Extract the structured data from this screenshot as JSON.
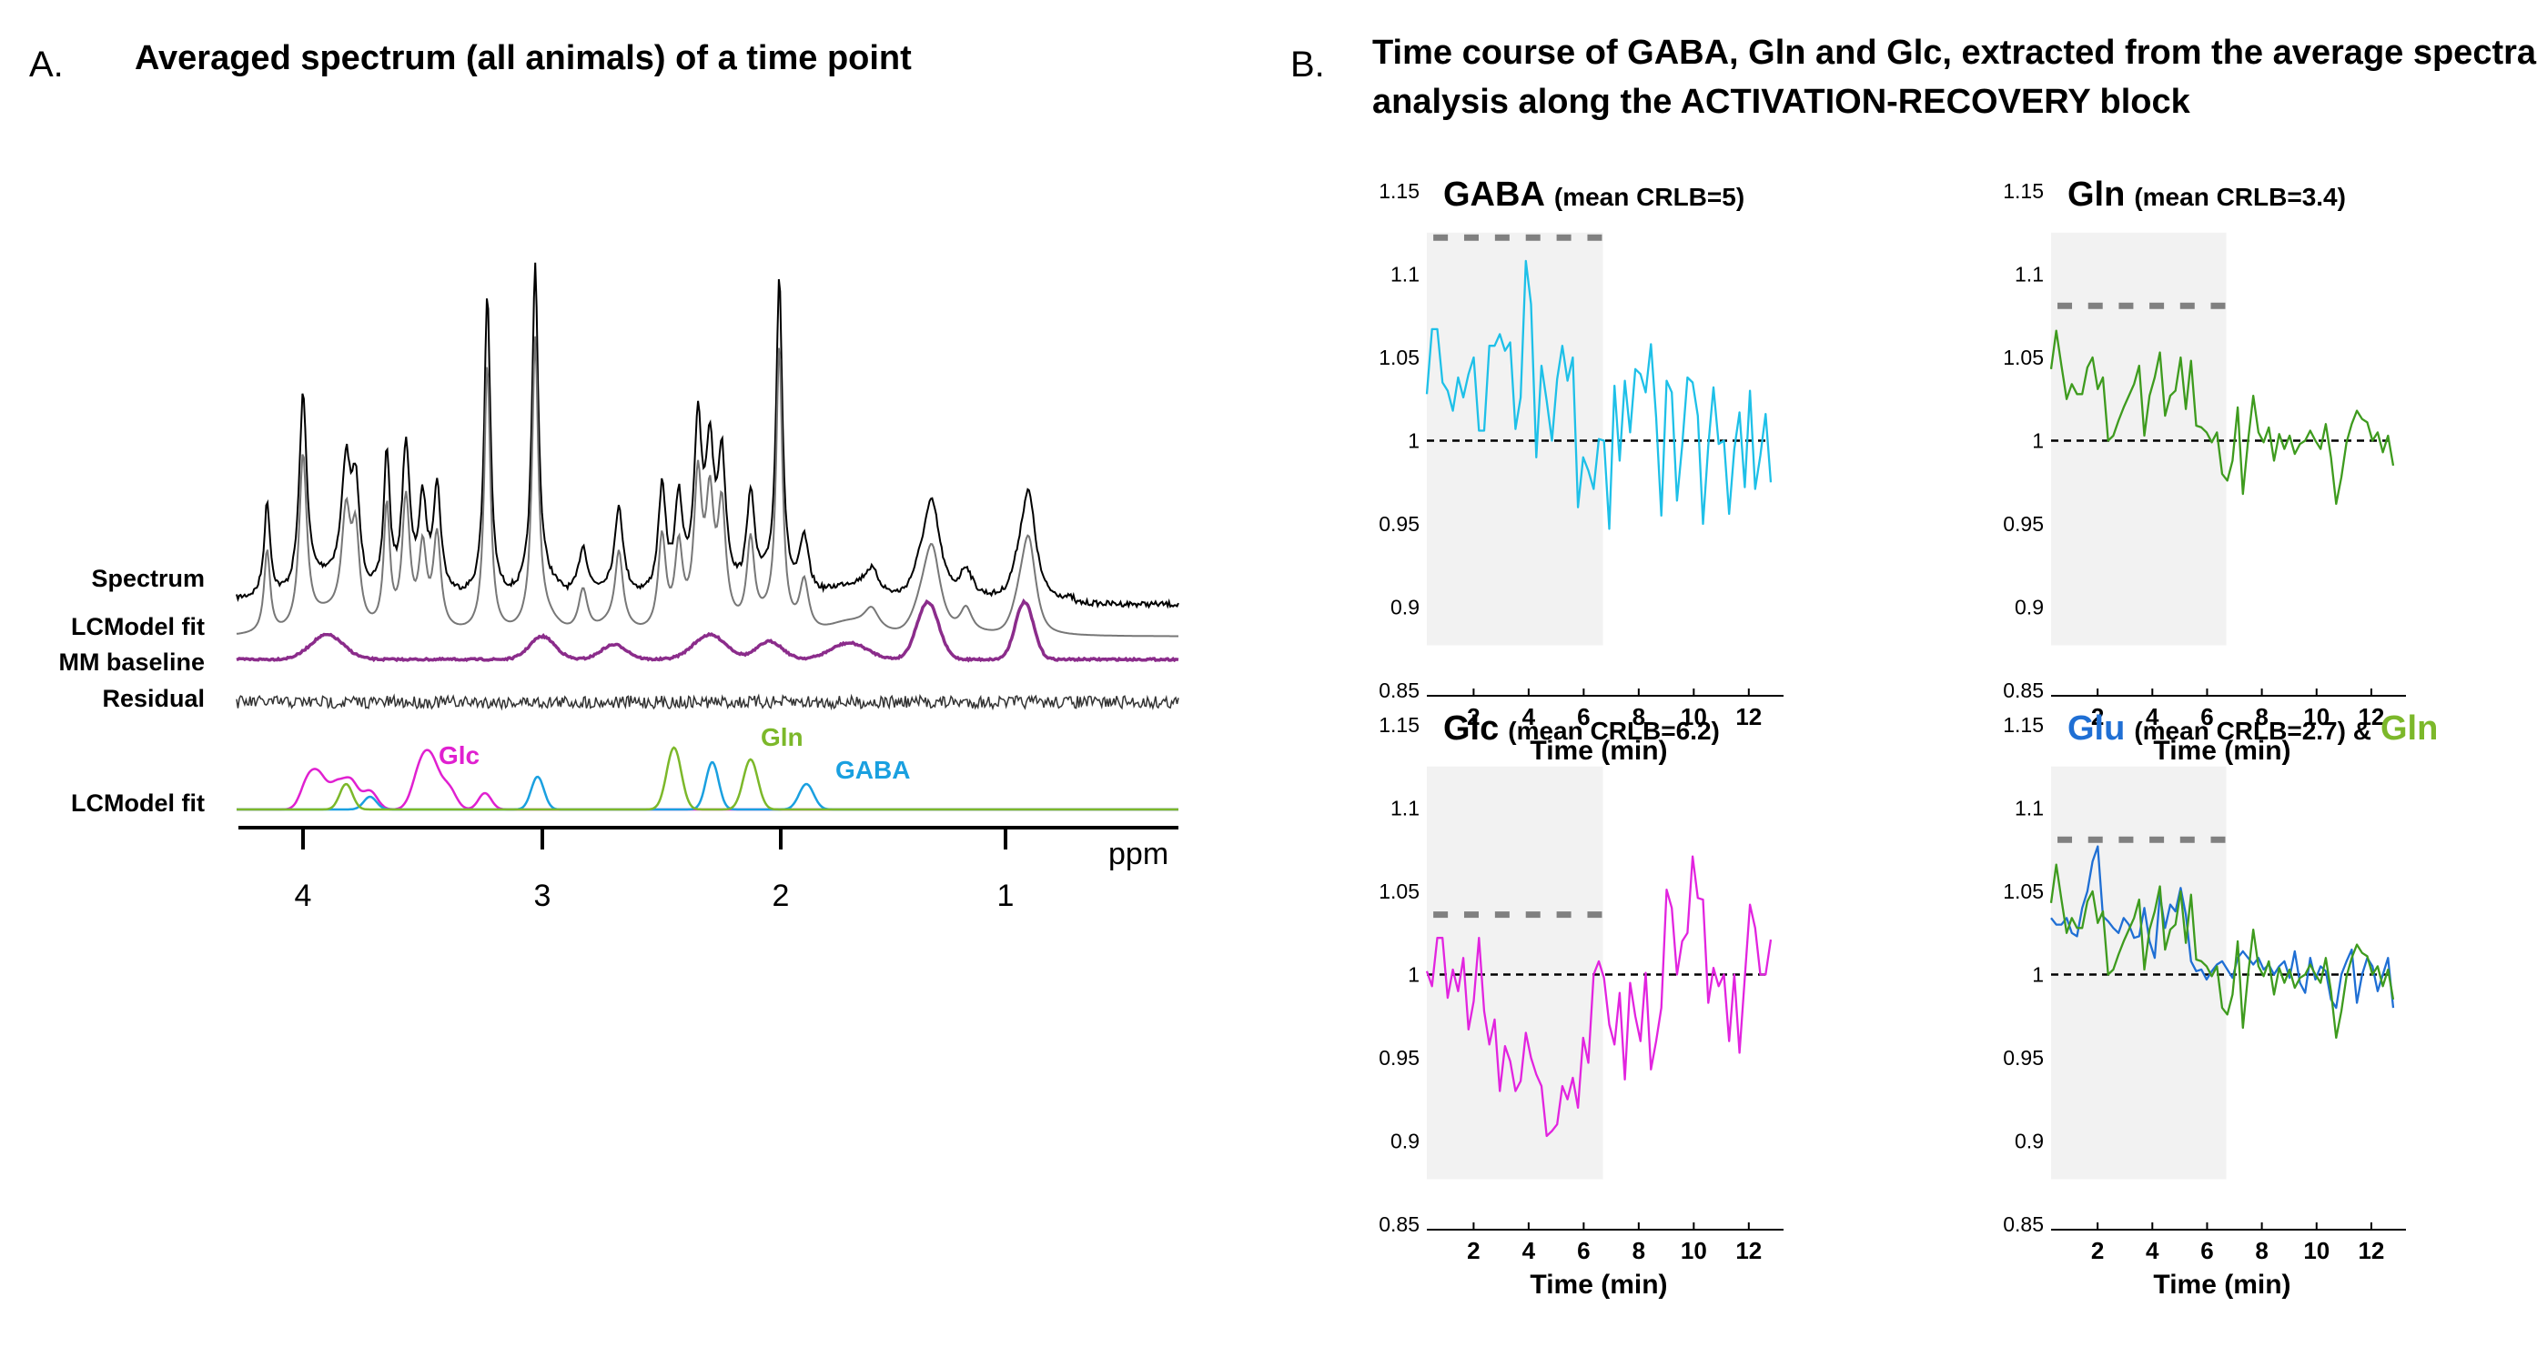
{
  "panel_a": {
    "letter": "A.",
    "title": "Averaged spectrum (all animals) of a time point",
    "row_labels": [
      "Spectrum",
      "LCModel fit",
      "MM baseline",
      "Residual",
      "LCModel fit"
    ],
    "peak_labels": [
      {
        "text": "Glc",
        "color": "#e020d0"
      },
      {
        "text": "Gln",
        "color": "#7cb82a"
      },
      {
        "text": "GABA",
        "color": "#1aa0e0"
      }
    ],
    "xlabel": "ppm",
    "x_ticks": [
      "4",
      "3",
      "2",
      "1"
    ]
  },
  "panel_b": {
    "letter": "B.",
    "title_lines": [
      "Time course of GABA, Gln and Glc, extracted from the average spectra",
      "analysis along the ACTIVATION-RECOVERY block"
    ]
  },
  "chart_data": [
    {
      "type": "line",
      "id": "spectrum",
      "title": "Averaged spectrum (all animals) of a time point",
      "xlabel": "ppm",
      "xlim": [
        4.3,
        0.2
      ],
      "series": [
        {
          "name": "Spectrum",
          "color": "#000000",
          "peaks_ppm": [
            4.15,
            4.0,
            3.8,
            3.65,
            3.57,
            3.44,
            3.23,
            3.03,
            2.68,
            2.5,
            2.35,
            2.25,
            2.13,
            2.01,
            1.33,
            0.9
          ]
        },
        {
          "name": "LCModel fit",
          "color": "#777777"
        },
        {
          "name": "MM baseline",
          "color": "#8b2c8b"
        },
        {
          "name": "Residual",
          "color": "#333333"
        },
        {
          "name": "Glc",
          "color": "#e020d0"
        },
        {
          "name": "Gln",
          "color": "#7cb82a"
        },
        {
          "name": "GABA",
          "color": "#1aa0e0"
        }
      ]
    },
    {
      "type": "line",
      "id": "gaba",
      "title": "GABA",
      "subtitle": "(mean CRLB=5)",
      "xlabel": "Time (min)",
      "ylim": [
        0.85,
        1.15
      ],
      "xlim": [
        0.3,
        12.8
      ],
      "y_ticks": [
        "0.85",
        "0.9",
        "0.95",
        "1",
        "1.05",
        "1.1",
        "1.15"
      ],
      "x_ticks": [
        "2",
        "4",
        "6",
        "8",
        "10",
        "12"
      ],
      "shade": [
        0.3,
        6.7
      ],
      "stim_level": 1.122,
      "stim_dashes": 6,
      "reference": 1,
      "series": [
        {
          "name": "GABA",
          "color": "#1ec0e8",
          "values": [
            1.028,
            1.067,
            1.067,
            1.035,
            1.03,
            1.018,
            1.038,
            1.026,
            1.04,
            1.05,
            1.006,
            1.006,
            1.057,
            1.057,
            1.064,
            1.054,
            1.059,
            1.007,
            1.026,
            1.108,
            1.082,
            0.99,
            1.045,
            1.024,
            1.0,
            1.037,
            1.057,
            1.036,
            1.05,
            0.96,
            0.99,
            0.982,
            0.971,
            1.001,
            1.0,
            0.947,
            1.033,
            0.988,
            1.036,
            1.005,
            1.043,
            1.04,
            1.029,
            1.058,
            1.014,
            0.955,
            1.036,
            1.029,
            0.964,
            0.997,
            1.038,
            1.035,
            1.015,
            0.95,
            0.997,
            1.032,
            0.998,
            1.0,
            0.956,
            0.995,
            1.017,
            0.972,
            1.03,
            0.971,
            0.991,
            1.016,
            0.975
          ]
        }
      ]
    },
    {
      "type": "line",
      "id": "gln",
      "title": "Gln",
      "subtitle": "(mean CRLB=3.4)",
      "xlabel": "Time (min)",
      "ylim": [
        0.85,
        1.15
      ],
      "xlim": [
        0.3,
        12.8
      ],
      "y_ticks": [
        "0.85",
        "0.9",
        "0.95",
        "1",
        "1.05",
        "1.1",
        "1.15"
      ],
      "x_ticks": [
        "2",
        "4",
        "6",
        "8",
        "10",
        "12"
      ],
      "shade": [
        0.3,
        6.7
      ],
      "stim_level": 1.081,
      "stim_dashes": 6,
      "reference": 1,
      "series": [
        {
          "name": "Gln",
          "color": "#3e9b1e",
          "values": [
            1.043,
            1.066,
            1.045,
            1.025,
            1.034,
            1.028,
            1.028,
            1.044,
            1.05,
            1.031,
            1.038,
            1.0,
            1.003,
            1.012,
            1.02,
            1.027,
            1.034,
            1.045,
            1.003,
            1.027,
            1.038,
            1.053,
            1.015,
            1.027,
            1.03,
            1.05,
            1.019,
            1.048,
            1.009,
            1.008,
            1.005,
            0.999,
            1.005,
            0.98,
            0.976,
            0.988,
            1.02,
            0.968,
            1.0,
            1.027,
            1.005,
            0.999,
            1.008,
            0.988,
            1.004,
            0.995,
            1.003,
            0.992,
            0.998,
            1.0,
            1.006,
            1.0,
            0.995,
            1.01,
            0.99,
            0.962,
            0.978,
            0.999,
            1.01,
            1.018,
            1.013,
            1.011,
            1.0,
            1.005,
            0.993,
            1.003,
            0.985
          ]
        }
      ]
    },
    {
      "type": "line",
      "id": "glc",
      "title": "Glc",
      "subtitle": "(mean CRLB=6.2)",
      "xlabel": "Time (min)",
      "ylim": [
        0.85,
        1.15
      ],
      "xlim": [
        0.3,
        12.8
      ],
      "y_ticks": [
        "0.85",
        "0.9",
        "0.95",
        "1",
        "1.05",
        "1.1",
        "1.15"
      ],
      "x_ticks": [
        "2",
        "4",
        "6",
        "8",
        "10",
        "12"
      ],
      "shade": [
        0.3,
        6.7
      ],
      "stim_level": 1.036,
      "stim_dashes": 6,
      "reference": 1,
      "series": [
        {
          "name": "Glc",
          "color": "#e224df",
          "values": [
            1.002,
            0.993,
            1.022,
            1.022,
            0.986,
            1.003,
            0.99,
            1.01,
            0.967,
            0.984,
            1.022,
            0.978,
            0.958,
            0.973,
            0.93,
            0.957,
            0.948,
            0.93,
            0.936,
            0.965,
            0.95,
            0.94,
            0.933,
            0.903,
            0.906,
            0.91,
            0.933,
            0.925,
            0.938,
            0.92,
            0.962,
            0.947,
            1.0,
            1.008,
            0.998,
            0.97,
            0.958,
            0.989,
            0.937,
            0.995,
            0.975,
            0.96,
            1.001,
            0.943,
            0.96,
            0.98,
            1.051,
            1.04,
            1.0,
            1.02,
            1.025,
            1.071,
            1.046,
            1.045,
            0.983,
            1.004,
            0.993,
            1.0,
            0.96,
            1.0,
            0.953,
            0.998,
            1.042,
            1.028,
            1.0,
            1.0,
            1.021
          ]
        }
      ]
    },
    {
      "type": "line",
      "id": "glu_gln",
      "title": "Glu",
      "title_connector": "&",
      "title_second": "Gln",
      "subtitle": "(mean CRLB=2.7)",
      "xlabel": "Time (min)",
      "ylim": [
        0.85,
        1.15
      ],
      "xlim": [
        0.3,
        12.8
      ],
      "y_ticks": [
        "0.85",
        "0.9",
        "0.95",
        "1",
        "1.05",
        "1.1",
        "1.15"
      ],
      "x_ticks": [
        "2",
        "4",
        "6",
        "8",
        "10",
        "12"
      ],
      "shade": [
        0.3,
        6.7
      ],
      "stim_level": 1.081,
      "stim_dashes": 6,
      "reference": 1,
      "series": [
        {
          "name": "Glu",
          "color": "#1f6fd4",
          "values": [
            1.034,
            1.03,
            1.03,
            1.034,
            1.025,
            1.023,
            1.04,
            1.05,
            1.068,
            1.077,
            1.035,
            1.032,
            1.028,
            1.025,
            1.034,
            1.03,
            1.022,
            1.023,
            1.04,
            1.02,
            1.01,
            1.048,
            1.028,
            1.042,
            1.038,
            1.052,
            1.036,
            1.008,
            1.002,
            1.003,
            0.997,
            1.002,
            1.006,
            1.008,
            1.003,
            0.998,
            1.01,
            1.014,
            1.01,
            1.006,
            1.01,
            1.003,
            1.006,
            1.0,
            1.005,
            1.008,
            0.998,
            1.014,
            0.995,
            0.989,
            1.01,
            0.997,
            1.005,
            1.002,
            0.985,
            0.98,
            1.0,
            1.008,
            1.015,
            0.983,
            1.0,
            1.01,
            1.005,
            0.99,
            1.0,
            1.01,
            0.98
          ]
        },
        {
          "name": "Gln",
          "color": "#3e9b1e",
          "values": [
            1.043,
            1.066,
            1.045,
            1.025,
            1.034,
            1.028,
            1.028,
            1.044,
            1.05,
            1.031,
            1.038,
            1.0,
            1.003,
            1.012,
            1.02,
            1.027,
            1.034,
            1.045,
            1.003,
            1.027,
            1.038,
            1.053,
            1.015,
            1.027,
            1.03,
            1.05,
            1.019,
            1.048,
            1.009,
            1.008,
            1.005,
            0.999,
            1.005,
            0.98,
            0.976,
            0.988,
            1.02,
            0.968,
            1.0,
            1.027,
            1.005,
            0.999,
            1.008,
            0.988,
            1.004,
            0.995,
            1.003,
            0.992,
            0.998,
            1.0,
            1.006,
            1.0,
            0.995,
            1.01,
            0.99,
            0.962,
            0.978,
            0.999,
            1.01,
            1.018,
            1.013,
            1.011,
            1.0,
            1.005,
            0.993,
            1.003,
            0.985
          ]
        }
      ]
    }
  ],
  "colors": {
    "title_glu": "#1f6fd4",
    "title_gln": "#7cb82a",
    "shade": "#f2f2f2",
    "stim_bar": "#808080",
    "reference_line": "#000000"
  }
}
